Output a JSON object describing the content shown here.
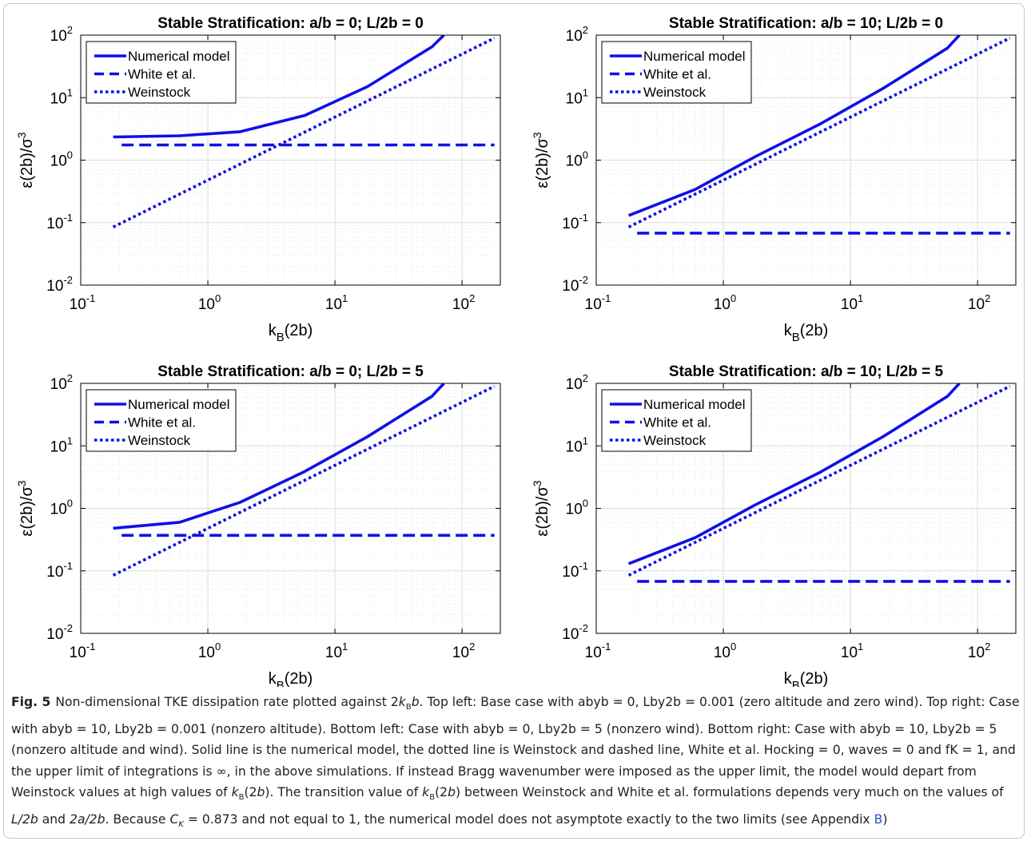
{
  "figure_number": "Fig. 5",
  "caption": {
    "label": "Fig. 5",
    "t1": "Non-dimensional TKE dissipation rate plotted against 2",
    "k_sym": "k",
    "b_sub": "B",
    "t2": "b",
    "t3": ". Top left: Base case with abyb = 0, Lby2b = 0.001 (zero altitude and zero wind). Top right: Case with abyb = 10, Lby2b = 0.001 (nonzero altitude). Bottom left: Case with abyb = 0, Lby2b = 5 (nonzero wind). Bottom right: Case with abyb = 10, Lby2b = 5 (nonzero altitude and wind). Solid line is the numerical model, the dotted line is Weinstock and dashed line, White et al. Hocking = 0, waves = 0 and fK = 1, and the upper limit of integrations is ∞, in the above simulations. If instead Bragg wavenumber were imposed as the upper limit, the model would depart from Weinstock values at high values of ",
    "t4": "(2",
    "t5": "b",
    "t6": "). The transition value of ",
    "t7": "(2",
    "t8": "b",
    "t9": ") between Weinstock and White et al. formulations depends very much on the values of ",
    "t10": "L/2b",
    "t11": " and ",
    "t12": "2a/2b",
    "t13": ". Because ",
    "t14": "C",
    "t15": "K",
    "t16": " = 0.873 and not equal to 1, the numerical model does not asymptote exactly to the two limits (see Appendix ",
    "t17": "B",
    "t18": ")"
  },
  "colors": {
    "series": "#1010e6",
    "grid": "#e6e6e6",
    "axis": "#000000"
  },
  "chart_data": [
    {
      "type": "line",
      "title": "Stable Stratification: a/b = 0; L/2b = 0",
      "xlabel": "k_B(2b)",
      "ylabel": "ε(2b)/σ^3",
      "x_scale": "log",
      "y_scale": "log",
      "xlim": [
        0.1,
        200
      ],
      "ylim": [
        0.01,
        100
      ],
      "x_ticks": [
        "10^-1",
        "10^0",
        "10^1",
        "10^2"
      ],
      "y_ticks": [
        "10^-2",
        "10^-1",
        "10^0",
        "10^1",
        "10^2"
      ],
      "grid": true,
      "legend_position": "top-left",
      "series": [
        {
          "name": "Numerical model",
          "style": "solid",
          "x": [
            0.18,
            0.6,
            1.8,
            5.8,
            18,
            58,
            72
          ],
          "y": [
            2.35,
            2.45,
            2.85,
            5.2,
            15,
            65,
            100
          ]
        },
        {
          "name": "White et al.",
          "style": "dashed",
          "x": [
            0.21,
            180
          ],
          "y": [
            1.75,
            1.75
          ]
        },
        {
          "name": "Weinstock",
          "style": "dotted",
          "x": [
            0.18,
            180
          ],
          "y": [
            0.085,
            90
          ]
        }
      ]
    },
    {
      "type": "line",
      "title": "Stable Stratification: a/b = 10; L/2b = 0",
      "xlabel": "k_B(2b)",
      "ylabel": "ε(2b)/σ^3",
      "x_scale": "log",
      "y_scale": "log",
      "xlim": [
        0.1,
        200
      ],
      "ylim": [
        0.01,
        100
      ],
      "x_ticks": [
        "10^-1",
        "10^0",
        "10^1",
        "10^2"
      ],
      "y_ticks": [
        "10^-2",
        "10^-1",
        "10^0",
        "10^1",
        "10^2"
      ],
      "grid": true,
      "legend_position": "top-left",
      "series": [
        {
          "name": "Numerical model",
          "style": "solid",
          "x": [
            0.18,
            0.6,
            1.8,
            5.8,
            18,
            58,
            72
          ],
          "y": [
            0.13,
            0.34,
            1.15,
            3.8,
            14,
            62,
            100
          ]
        },
        {
          "name": "White et al.",
          "style": "dashed",
          "x": [
            0.21,
            180
          ],
          "y": [
            0.068,
            0.068
          ]
        },
        {
          "name": "Weinstock",
          "style": "dotted",
          "x": [
            0.18,
            180
          ],
          "y": [
            0.085,
            90
          ]
        }
      ]
    },
    {
      "type": "line",
      "title": "Stable Stratification: a/b = 0; L/2b = 5",
      "xlabel": "k_B(2b)",
      "ylabel": "ε(2b)/σ^3",
      "x_scale": "log",
      "y_scale": "log",
      "xlim": [
        0.1,
        200
      ],
      "ylim": [
        0.01,
        100
      ],
      "x_ticks": [
        "10^-1",
        "10^0",
        "10^1",
        "10^2"
      ],
      "y_ticks": [
        "10^-2",
        "10^-1",
        "10^0",
        "10^1",
        "10^2"
      ],
      "grid": true,
      "legend_position": "top-left",
      "series": [
        {
          "name": "Numerical model",
          "style": "solid",
          "x": [
            0.18,
            0.6,
            1.8,
            5.8,
            18,
            58,
            72
          ],
          "y": [
            0.48,
            0.6,
            1.25,
            3.9,
            14,
            62,
            100
          ]
        },
        {
          "name": "White et al.",
          "style": "dashed",
          "x": [
            0.21,
            180
          ],
          "y": [
            0.37,
            0.37
          ]
        },
        {
          "name": "Weinstock",
          "style": "dotted",
          "x": [
            0.18,
            180
          ],
          "y": [
            0.085,
            90
          ]
        }
      ]
    },
    {
      "type": "line",
      "title": "Stable Stratification: a/b = 10; L/2b = 5",
      "xlabel": "k_B(2b)",
      "ylabel": "ε(2b)/σ^3",
      "x_scale": "log",
      "y_scale": "log",
      "xlim": [
        0.1,
        200
      ],
      "ylim": [
        0.01,
        100
      ],
      "x_ticks": [
        "10^-1",
        "10^0",
        "10^1",
        "10^2"
      ],
      "y_ticks": [
        "10^-2",
        "10^-1",
        "10^0",
        "10^1",
        "10^2"
      ],
      "grid": true,
      "legend_position": "top-left",
      "series": [
        {
          "name": "Numerical model",
          "style": "solid",
          "x": [
            0.18,
            0.6,
            1.8,
            5.8,
            18,
            58,
            72
          ],
          "y": [
            0.13,
            0.34,
            1.15,
            3.8,
            14,
            62,
            100
          ]
        },
        {
          "name": "White et al.",
          "style": "dashed",
          "x": [
            0.21,
            180
          ],
          "y": [
            0.068,
            0.068
          ]
        },
        {
          "name": "Weinstock",
          "style": "dotted",
          "x": [
            0.18,
            180
          ],
          "y": [
            0.085,
            90
          ]
        }
      ]
    }
  ]
}
